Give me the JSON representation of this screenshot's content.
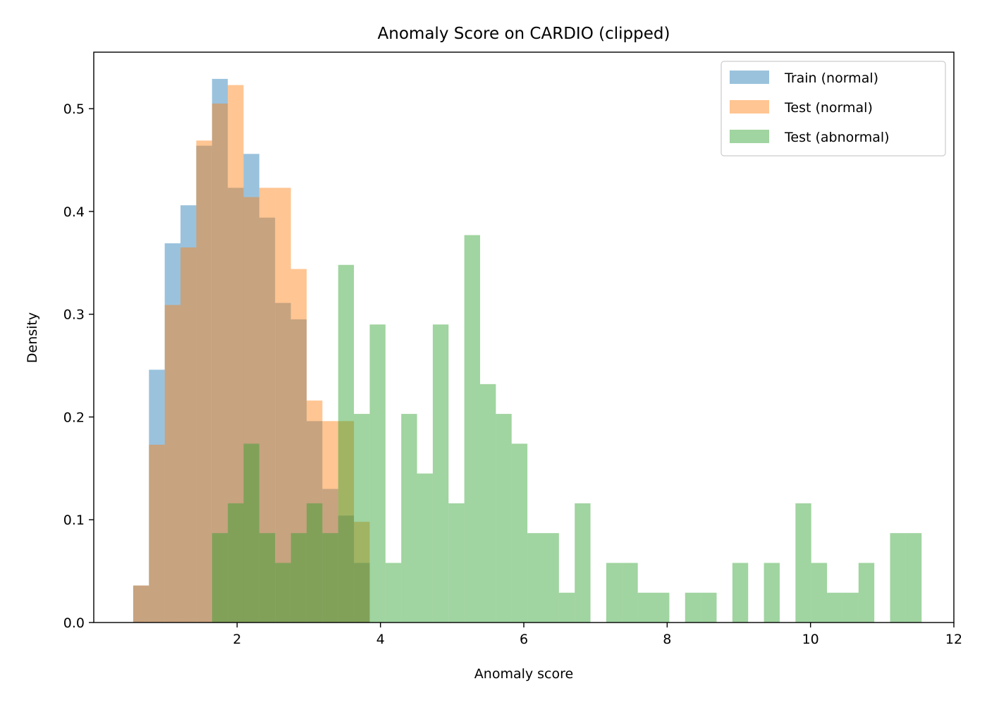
{
  "chart_data": {
    "type": "bar",
    "title": "Anomaly Score on CARDIO (clipped)",
    "xlabel": "Anomaly score",
    "ylabel": "Density",
    "xlim": [
      0,
      12
    ],
    "ylim": [
      0,
      0.555
    ],
    "xticks": [
      2,
      4,
      6,
      8,
      10,
      12
    ],
    "yticks": [
      0.0,
      0.1,
      0.2,
      0.3,
      0.4,
      0.5
    ],
    "grid": false,
    "legend_position": "top-right",
    "series": [
      {
        "name": "Train (normal)",
        "color": "#1f77b4",
        "opacity": 0.45,
        "bin_edges": [
          0.55,
          0.77,
          0.99,
          1.21,
          1.43,
          1.65,
          1.87,
          2.09,
          2.31,
          2.53,
          2.75,
          2.97,
          3.19,
          3.41,
          3.63,
          3.85
        ],
        "values": [
          0.036,
          0.246,
          0.369,
          0.406,
          0.464,
          0.529,
          0.423,
          0.456,
          0.394,
          0.311,
          0.295,
          0.196,
          0.13,
          0.104,
          0.058
        ]
      },
      {
        "name": "Test (normal)",
        "color": "#ff7f0e",
        "opacity": 0.45,
        "bin_edges": [
          0.55,
          0.77,
          0.99,
          1.21,
          1.43,
          1.65,
          1.87,
          2.09,
          2.31,
          2.53,
          2.75,
          2.97,
          3.19,
          3.41,
          3.63,
          3.85
        ],
        "values": [
          0.036,
          0.173,
          0.309,
          0.365,
          0.469,
          0.505,
          0.523,
          0.414,
          0.423,
          0.423,
          0.344,
          0.216,
          0.196,
          0.196,
          0.098
        ]
      },
      {
        "name": "Test (abnormal)",
        "color": "#2ca02c",
        "opacity": 0.45,
        "bin_edges": [
          1.65,
          1.87,
          2.09,
          2.31,
          2.53,
          2.75,
          2.97,
          3.19,
          3.41,
          3.63,
          3.85,
          4.07,
          4.29,
          4.51,
          4.73,
          4.95,
          5.17,
          5.39,
          5.61,
          5.83,
          6.05,
          6.27,
          6.49,
          6.71,
          6.93,
          7.15,
          7.37,
          7.59,
          7.81,
          8.03,
          8.25,
          8.47,
          8.69,
          8.91,
          9.13,
          9.35,
          9.57,
          9.79,
          10.01,
          10.23,
          10.45,
          10.67,
          10.89,
          11.11,
          11.33,
          11.55
        ],
        "values": [
          0.087,
          0.116,
          0.174,
          0.087,
          0.058,
          0.087,
          0.116,
          0.087,
          0.348,
          0.203,
          0.29,
          0.058,
          0.203,
          0.145,
          0.29,
          0.116,
          0.377,
          0.232,
          0.203,
          0.174,
          0.087,
          0.087,
          0.029,
          0.116,
          0.0,
          0.058,
          0.058,
          0.029,
          0.029,
          0.0,
          0.029,
          0.029,
          0.0,
          0.058,
          0.0,
          0.058,
          0.0,
          0.116,
          0.058,
          0.029,
          0.029,
          0.058,
          0.0,
          0.087,
          0.087
        ]
      }
    ]
  }
}
